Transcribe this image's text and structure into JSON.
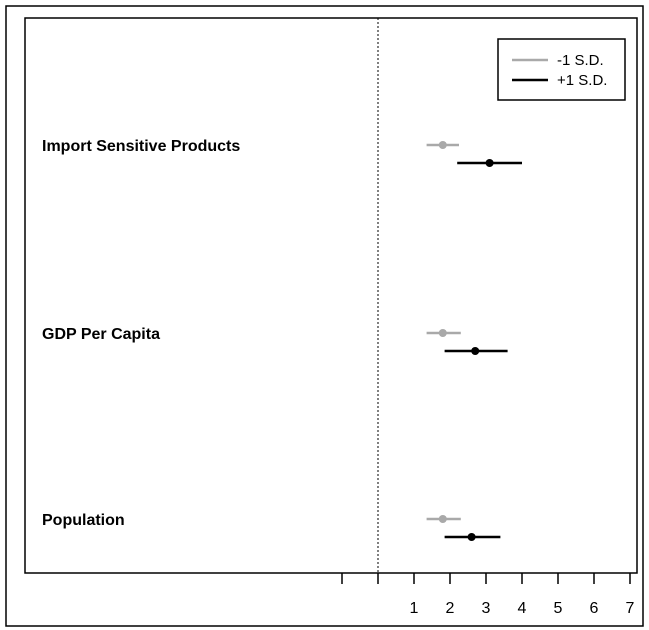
{
  "chart_data": {
    "type": "dot-whisker",
    "xlim": [
      -1,
      7
    ],
    "x_ticks": [
      -1,
      0,
      1,
      2,
      3,
      4,
      5,
      6,
      7
    ],
    "x_tick_labels": [
      "",
      "",
      "1",
      "2",
      "3",
      "4",
      "5",
      "6",
      "7"
    ],
    "reference_line": 0,
    "categories": [
      "Import Sensitive Products",
      "GDP Per Capita",
      "Population"
    ],
    "series": [
      {
        "name": "-1 S.D.",
        "color": "#a9a9a9",
        "points": [
          {
            "category": "Import Sensitive Products",
            "estimate": 1.8,
            "low": 1.35,
            "high": 2.25
          },
          {
            "category": "GDP Per Capita",
            "estimate": 1.8,
            "low": 1.35,
            "high": 2.3
          },
          {
            "category": "Population",
            "estimate": 1.8,
            "low": 1.35,
            "high": 2.3
          }
        ]
      },
      {
        "name": "+1 S.D.",
        "color": "#000000",
        "points": [
          {
            "category": "Import Sensitive Products",
            "estimate": 3.1,
            "low": 2.2,
            "high": 4.0
          },
          {
            "category": "GDP Per Capita",
            "estimate": 2.7,
            "low": 1.85,
            "high": 3.6
          },
          {
            "category": "Population",
            "estimate": 2.6,
            "low": 1.85,
            "high": 3.4
          }
        ]
      }
    ],
    "legend": {
      "position": "top-right"
    },
    "grid": false
  }
}
